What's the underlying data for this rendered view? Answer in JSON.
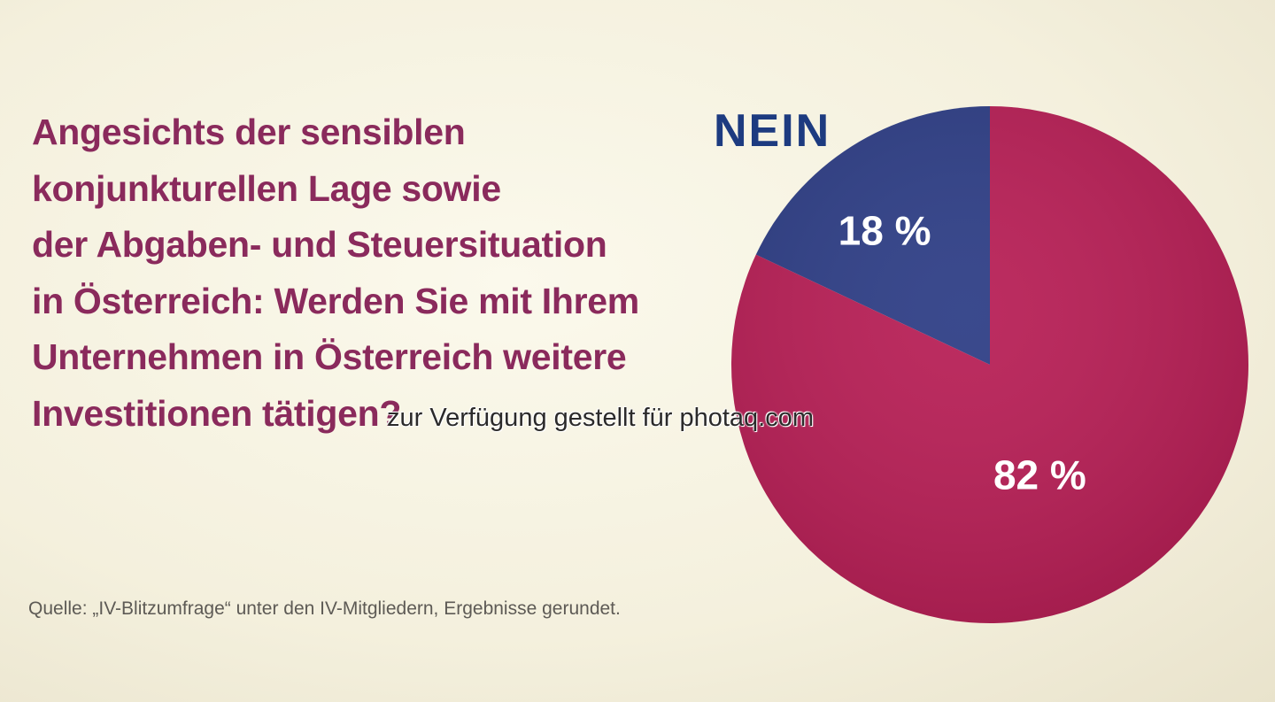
{
  "question_lines": [
    "Angesichts der sensiblen",
    "konjunkturellen Lage sowie",
    "der Abgaben- und Steuersituation",
    "in Österreich: Werden Sie mit Ihrem",
    "Unternehmen in Österreich weitere",
    "Investitionen tätigen?"
  ],
  "source": "Quelle: „IV-Blitzumfrage“ unter den IV-Mitgliedern, Ergebnisse gerundet.",
  "watermark": "zur Verfügung gestellt für photaq.com",
  "chart_data": {
    "type": "pie",
    "start": "12 o'clock",
    "direction": "counterclockwise",
    "slices": [
      {
        "label": "NEIN",
        "value": 18,
        "value_label": "18 %",
        "color": "#2e3e86"
      },
      {
        "label": "",
        "value": 82,
        "value_label": "82 %",
        "color": "#b81f56"
      }
    ]
  }
}
